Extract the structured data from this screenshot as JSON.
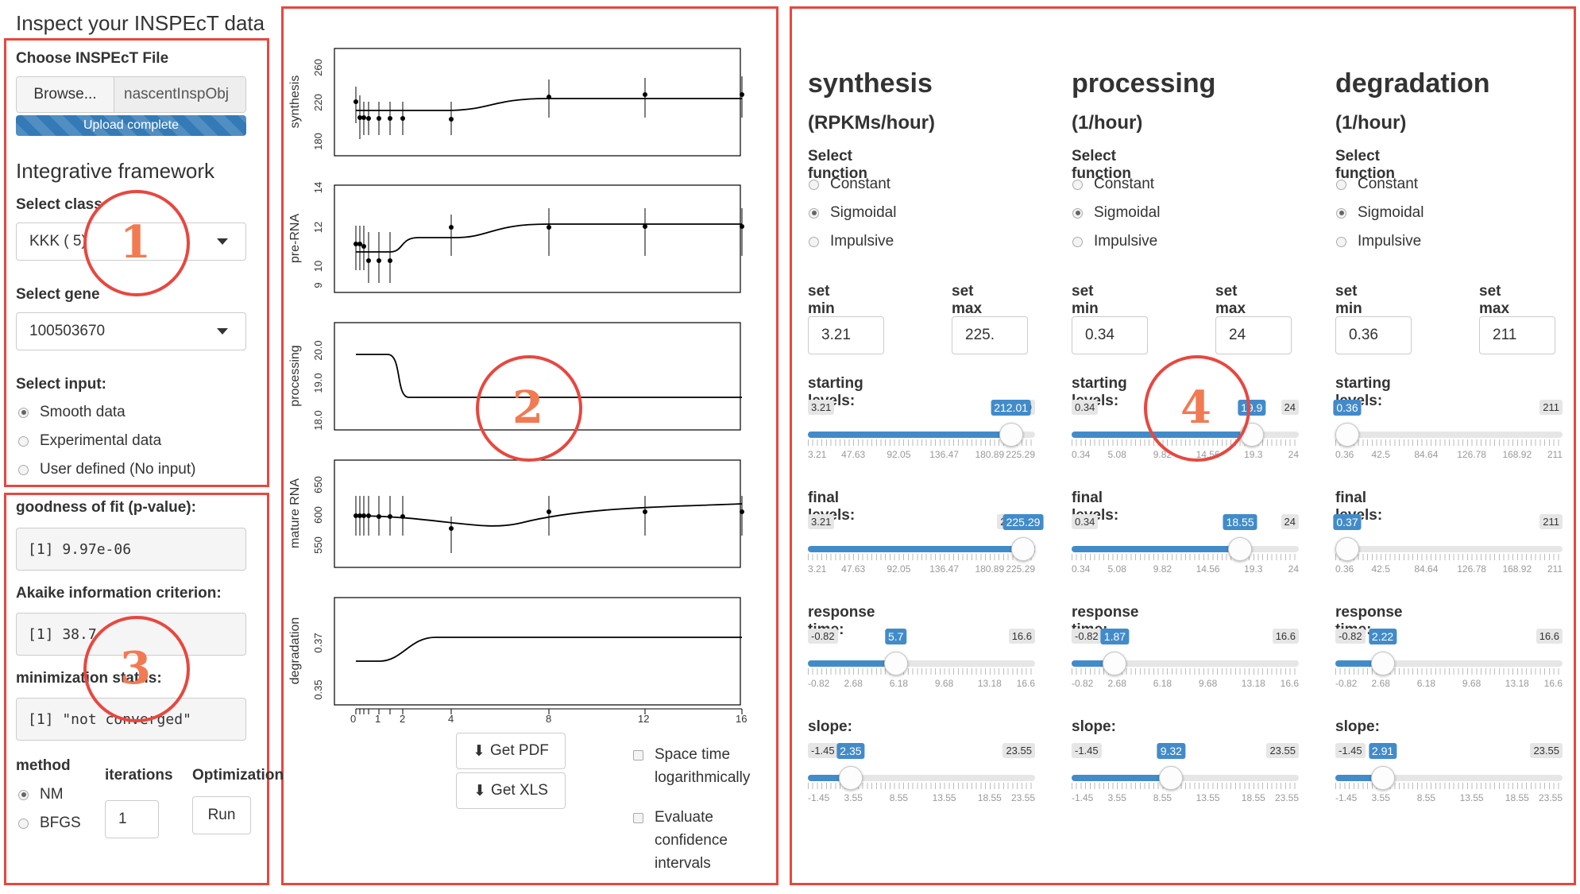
{
  "page": {
    "title": "Inspect your INSPEcT data"
  },
  "left": {
    "file_label": "Choose INSPEcT File",
    "browse_label": "Browse...",
    "file_name": "nascentInspObj",
    "upload_status": "Upload complete",
    "framework_title": "Integrative framework",
    "class_label": "Select class",
    "class_value": "KKK ( 5)",
    "gene_label": "Select gene",
    "gene_value": "100503670",
    "input_label": "Select input:",
    "inputs": [
      {
        "label": "Smooth data",
        "checked": true
      },
      {
        "label": "Experimental data",
        "checked": false
      },
      {
        "label": "User defined (No input)",
        "checked": false
      }
    ],
    "gof_label": "goodness of fit (p-value):",
    "gof_value": "[1] 9.97e-06",
    "aic_label": "Akaike information criterion:",
    "aic_value": "[1] 38.7",
    "min_label": "minimization status:",
    "min_value": "[1] \"not converged\"",
    "method_label": "method",
    "methods": [
      {
        "label": "NM",
        "checked": true
      },
      {
        "label": "BFGS",
        "checked": false
      }
    ],
    "iterations_label": "iterations",
    "iterations_value": "1",
    "optimization_label": "Optimization",
    "run_label": "Run"
  },
  "middle": {
    "plots": [
      {
        "ylabel": "synthesis",
        "ticks": [
          "180",
          "220",
          "260"
        ]
      },
      {
        "ylabel": "pre-RNA",
        "ticks": [
          "9",
          "10",
          "12",
          "14"
        ]
      },
      {
        "ylabel": "processing",
        "ticks": [
          "18.0",
          "19.0",
          "20.0"
        ]
      },
      {
        "ylabel": "mature RNA",
        "ticks": [
          "550",
          "600",
          "650"
        ]
      },
      {
        "ylabel": "degradation",
        "ticks": [
          "0.35",
          "0.37"
        ]
      }
    ],
    "xticks": [
      "0",
      "1",
      "2",
      "4",
      "8",
      "12",
      "16"
    ],
    "pdf_label": "Get PDF",
    "xls_label": "Get XLS",
    "log_label_1": "Space time",
    "log_label_2": "logarithmically",
    "ci_label_1": "Evaluate",
    "ci_label_2": "confidence",
    "ci_label_3": "intervals"
  },
  "right": {
    "columns": [
      {
        "title": "synthesis",
        "unit": "(RPKMs/hour)",
        "select_label": "Select function",
        "functions": [
          {
            "label": "Constant",
            "checked": false
          },
          {
            "label": "Sigmoidal",
            "checked": true
          },
          {
            "label": "Impulsive",
            "checked": false
          }
        ],
        "min_label": "set min",
        "min_value": "3.21",
        "max_label": "set max",
        "max_value": "225.",
        "sliders": [
          {
            "label": "starting levels:",
            "min": "3.21",
            "max": "225.29",
            "value": "212.01",
            "fraction": 0.94,
            "ticks": [
              "3.21",
              "47.63",
              "92.05",
              "136.47",
              "180.89",
              "225.29"
            ]
          },
          {
            "label": "final levels:",
            "min": "3.21",
            "max": "225.29",
            "value": "225.29",
            "fraction": 1.0,
            "ticks": [
              "3.21",
              "47.63",
              "92.05",
              "136.47",
              "180.89",
              "225.29"
            ]
          },
          {
            "label": "response time:",
            "min": "-0.82",
            "max": "16.6",
            "value": "5.7",
            "fraction": 0.374,
            "ticks": [
              "-0.82",
              "2.68",
              "6.18",
              "9.68",
              "13.18",
              "16.6"
            ]
          },
          {
            "label": "slope:",
            "min": "-1.45",
            "max": "23.55",
            "value": "2.35",
            "fraction": 0.152,
            "ticks": [
              "-1.45",
              "3.55",
              "8.55",
              "13.55",
              "18.55",
              "23.55"
            ]
          }
        ]
      },
      {
        "title": "processing",
        "unit": "(1/hour)",
        "select_label": "Select function",
        "functions": [
          {
            "label": "Constant",
            "checked": false
          },
          {
            "label": "Sigmoidal",
            "checked": true
          },
          {
            "label": "Impulsive",
            "checked": false
          }
        ],
        "min_label": "set min",
        "min_value": "0.34",
        "max_label": "set max",
        "max_value": "24",
        "sliders": [
          {
            "label": "starting levels:",
            "min": "0.34",
            "max": "24",
            "value": "19.9",
            "fraction": 0.827,
            "ticks": [
              "0.34",
              "5.08",
              "9.82",
              "14.56",
              "19.3",
              "24"
            ]
          },
          {
            "label": "final levels:",
            "min": "0.34",
            "max": "24",
            "value": "18.55",
            "fraction": 0.77,
            "ticks": [
              "0.34",
              "5.08",
              "9.82",
              "14.56",
              "19.3",
              "24"
            ]
          },
          {
            "label": "response time:",
            "min": "-0.82",
            "max": "16.6",
            "value": "1.87",
            "fraction": 0.154,
            "ticks": [
              "-0.82",
              "2.68",
              "6.18",
              "9.68",
              "13.18",
              "16.6"
            ]
          },
          {
            "label": "slope:",
            "min": "-1.45",
            "max": "23.55",
            "value": "9.32",
            "fraction": 0.431,
            "ticks": [
              "-1.45",
              "3.55",
              "8.55",
              "13.55",
              "18.55",
              "23.55"
            ]
          }
        ]
      },
      {
        "title": "degradation",
        "unit": "(1/hour)",
        "select_label": "Select function",
        "functions": [
          {
            "label": "Constant",
            "checked": false
          },
          {
            "label": "Sigmoidal",
            "checked": true
          },
          {
            "label": "Impulsive",
            "checked": false
          }
        ],
        "min_label": "set min",
        "min_value": "0.36",
        "max_label": "set max",
        "max_value": "211",
        "sliders": [
          {
            "label": "starting levels:",
            "min": "0.36",
            "max": "211",
            "value": "0.36",
            "fraction": 0.0,
            "ticks": [
              "0.36",
              "42.5",
              "84.64",
              "126.78",
              "168.92",
              "211"
            ]
          },
          {
            "label": "final levels:",
            "min": "0.36",
            "max": "211",
            "value": "0.37",
            "fraction": 0.0,
            "ticks": [
              "0.36",
              "42.5",
              "84.64",
              "126.78",
              "168.92",
              "211"
            ]
          },
          {
            "label": "response time:",
            "min": "-0.82",
            "max": "16.6",
            "value": "2.22",
            "fraction": 0.174,
            "ticks": [
              "-0.82",
              "2.68",
              "6.18",
              "9.68",
              "13.18",
              "16.6"
            ]
          },
          {
            "label": "slope:",
            "min": "-1.45",
            "max": "23.55",
            "value": "2.91",
            "fraction": 0.174,
            "ticks": [
              "-1.45",
              "3.55",
              "8.55",
              "13.55",
              "18.55",
              "23.55"
            ]
          }
        ]
      }
    ]
  },
  "annotations": [
    "1",
    "2",
    "3",
    "4"
  ],
  "colors": {
    "accent": "#428bca",
    "annotation": "#e8473f",
    "annotation_text": "#f27a52"
  }
}
